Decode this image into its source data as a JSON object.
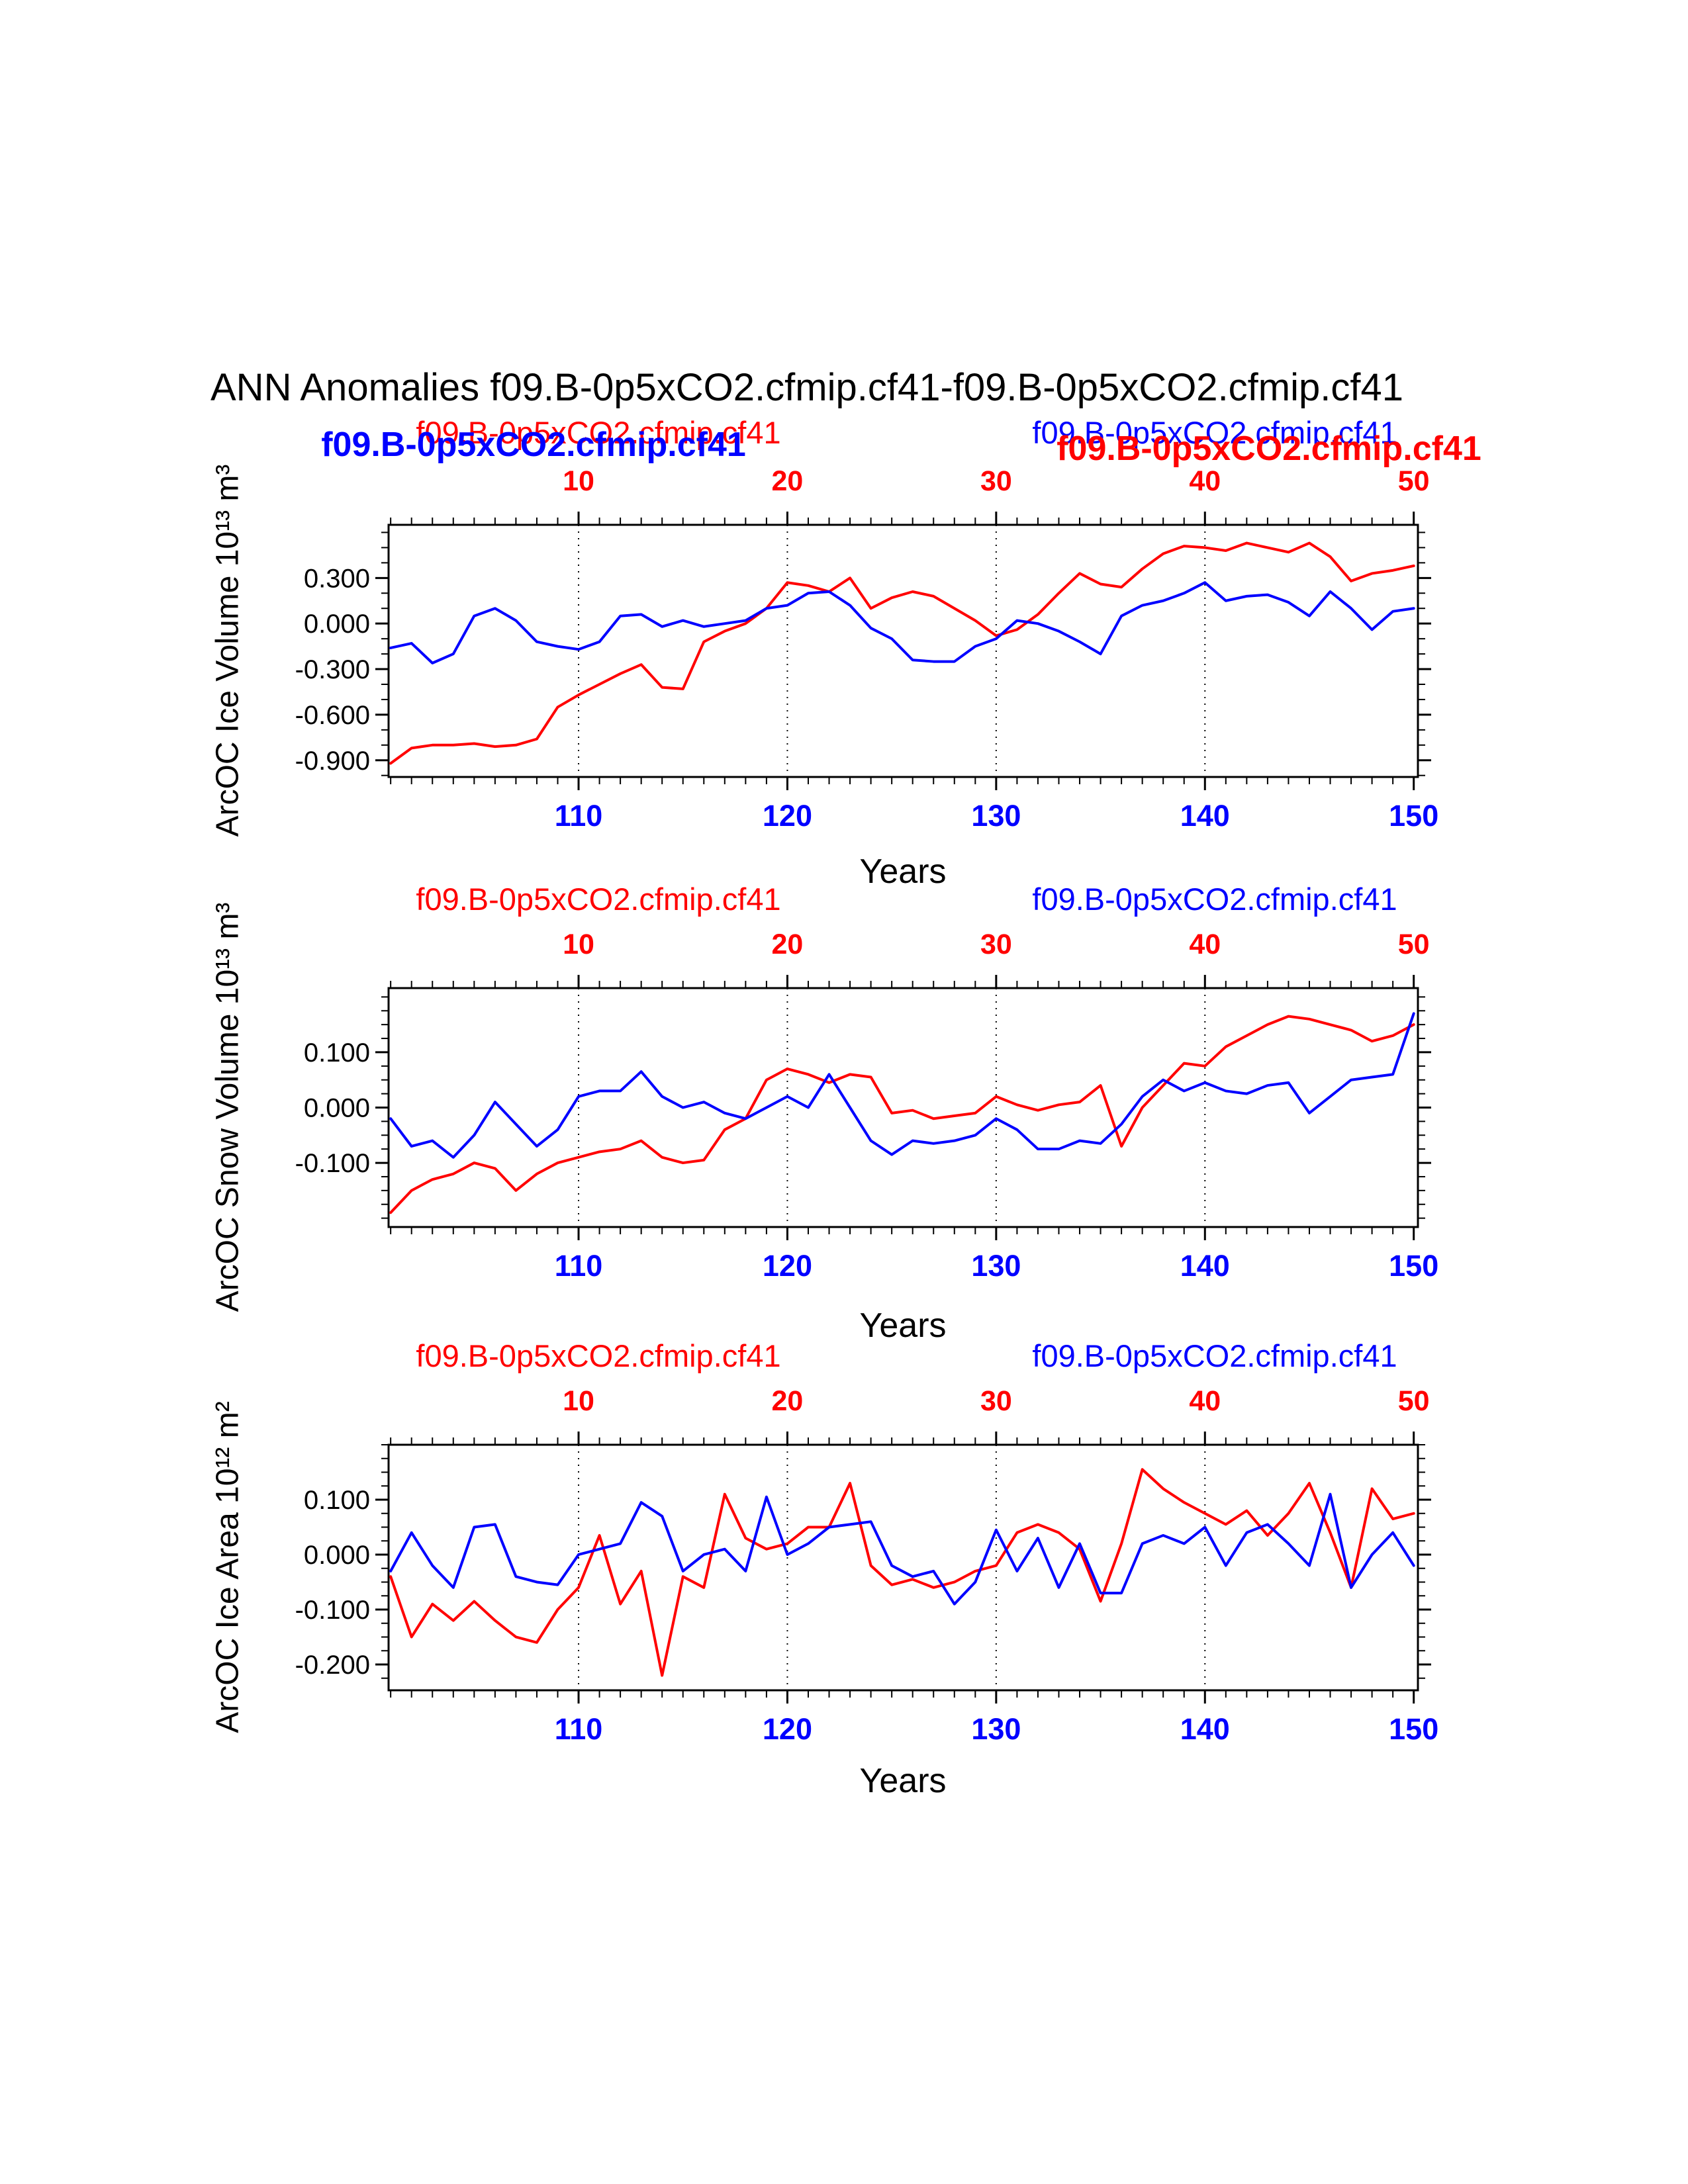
{
  "title": "ANN Anomalies f09.B-0p5xCO2.cfmip.cf41-f09.B-0p5xCO2.cfmip.cf41",
  "colors": {
    "red": "#ff0000",
    "blue": "#0000ff",
    "black": "#000000"
  },
  "legend": {
    "bold_left_label": "f09.B-0p5xCO2.cfmip.cf41",
    "bold_right_label": "f09.B-0p5xCO2.cfmip.cf41"
  },
  "chart_data": [
    {
      "type": "line",
      "legend_red": "f09.B-0p5xCO2.cfmip.cf41",
      "legend_blue": "f09.B-0p5xCO2.cfmip.cf41",
      "ylabel": "ArcOC Ice Volume 10¹³ m³",
      "xlabel": "Years",
      "x_start": 101,
      "x_end": 150,
      "xlim": [
        100.9,
        150.2
      ],
      "ylim": [
        -1.01,
        0.65
      ],
      "yticks": [
        0.3,
        0.0,
        -0.3,
        -0.6,
        -0.9
      ],
      "ytick_labels": [
        "0.300",
        "0.000",
        "-0.300",
        "-0.600",
        "-0.900"
      ],
      "yminor_step": 0.1,
      "xticks": [
        110,
        120,
        130,
        140,
        150
      ],
      "xtick_labels_bottom": [
        "110",
        "120",
        "130",
        "140",
        "150"
      ],
      "xtick_labels_top": [
        "10",
        "20",
        "30",
        "40",
        "50"
      ],
      "grid_x": [
        110,
        120,
        130,
        140
      ],
      "grid": true,
      "legend_position": "top",
      "series": [
        {
          "name": "f09.B-0p5xCO2.cfmip.cf41",
          "color": "red",
          "values": [
            -0.92,
            -0.82,
            -0.8,
            -0.8,
            -0.79,
            -0.81,
            -0.8,
            -0.76,
            -0.55,
            -0.47,
            -0.4,
            -0.33,
            -0.27,
            -0.42,
            -0.43,
            -0.12,
            -0.05,
            0.0,
            0.1,
            0.27,
            0.25,
            0.21,
            0.3,
            0.1,
            0.17,
            0.21,
            0.18,
            0.1,
            0.02,
            -0.08,
            -0.04,
            0.06,
            0.2,
            0.33,
            0.26,
            0.24,
            0.36,
            0.46,
            0.51,
            0.5,
            0.48,
            0.53,
            0.5,
            0.47,
            0.53,
            0.44,
            0.28,
            0.33,
            0.35,
            0.38
          ]
        },
        {
          "name": "f09.B-0p5xCO2.cfmip.cf41",
          "color": "blue",
          "values": [
            -0.16,
            -0.13,
            -0.26,
            -0.2,
            0.05,
            0.1,
            0.02,
            -0.12,
            -0.15,
            -0.17,
            -0.12,
            0.05,
            0.06,
            -0.02,
            0.02,
            -0.02,
            0.0,
            0.02,
            0.1,
            0.12,
            0.2,
            0.21,
            0.12,
            -0.03,
            -0.1,
            -0.24,
            -0.25,
            -0.25,
            -0.15,
            -0.1,
            0.02,
            0.0,
            -0.05,
            -0.12,
            -0.2,
            0.05,
            0.12,
            0.15,
            0.2,
            0.27,
            0.15,
            0.18,
            0.19,
            0.14,
            0.05,
            0.21,
            0.1,
            -0.04,
            0.08,
            0.1
          ]
        }
      ]
    },
    {
      "type": "line",
      "legend_red": "f09.B-0p5xCO2.cfmip.cf41",
      "legend_blue": "f09.B-0p5xCO2.cfmip.cf41",
      "ylabel": "ArcOC Snow Volume 10¹³ m³",
      "xlabel": "Years",
      "x_start": 101,
      "x_end": 150,
      "xlim": [
        100.9,
        150.2
      ],
      "ylim": [
        -0.216,
        0.216
      ],
      "yticks": [
        0.1,
        0.0,
        -0.1
      ],
      "ytick_labels": [
        "0.100",
        "0.000",
        "-0.100"
      ],
      "yminor_step": 0.025,
      "xticks": [
        110,
        120,
        130,
        140,
        150
      ],
      "xtick_labels_bottom": [
        "110",
        "120",
        "130",
        "140",
        "150"
      ],
      "xtick_labels_top": [
        "10",
        "20",
        "30",
        "40",
        "50"
      ],
      "grid_x": [
        110,
        120,
        130,
        140
      ],
      "grid": true,
      "legend_position": "top",
      "series": [
        {
          "name": "f09.B-0p5xCO2.cfmip.cf41",
          "color": "red",
          "values": [
            -0.19,
            -0.15,
            -0.13,
            -0.12,
            -0.1,
            -0.11,
            -0.15,
            -0.12,
            -0.1,
            -0.09,
            -0.08,
            -0.075,
            -0.06,
            -0.09,
            -0.1,
            -0.095,
            -0.04,
            -0.02,
            0.05,
            0.07,
            0.06,
            0.045,
            0.06,
            0.055,
            -0.01,
            -0.005,
            -0.02,
            -0.015,
            -0.01,
            0.02,
            0.005,
            -0.005,
            0.005,
            0.01,
            0.04,
            -0.07,
            0.0,
            0.04,
            0.08,
            0.075,
            0.11,
            0.13,
            0.15,
            0.165,
            0.16,
            0.15,
            0.14,
            0.12,
            0.13,
            0.15
          ]
        },
        {
          "name": "f09.B-0p5xCO2.cfmip.cf41",
          "color": "blue",
          "values": [
            -0.02,
            -0.07,
            -0.06,
            -0.09,
            -0.05,
            0.01,
            -0.03,
            -0.07,
            -0.04,
            0.02,
            0.03,
            0.03,
            0.065,
            0.02,
            0.0,
            0.01,
            -0.01,
            -0.02,
            0.0,
            0.02,
            0.0,
            0.06,
            0.0,
            -0.06,
            -0.085,
            -0.06,
            -0.065,
            -0.06,
            -0.05,
            -0.02,
            -0.04,
            -0.075,
            -0.075,
            -0.06,
            -0.065,
            -0.03,
            0.02,
            0.05,
            0.03,
            0.045,
            0.03,
            0.025,
            0.04,
            0.045,
            -0.01,
            0.02,
            0.05,
            0.055,
            0.06,
            0.17
          ]
        }
      ]
    },
    {
      "type": "line",
      "legend_red": "f09.B-0p5xCO2.cfmip.cf41",
      "legend_blue": "f09.B-0p5xCO2.cfmip.cf41",
      "ylabel": "ArcOC Ice Area 10¹² m²",
      "xlabel": "Years",
      "x_start": 101,
      "x_end": 150,
      "xlim": [
        100.9,
        150.2
      ],
      "ylim": [
        -0.247,
        0.2
      ],
      "yticks": [
        0.1,
        0.0,
        -0.1,
        -0.2
      ],
      "ytick_labels": [
        "0.100",
        "0.000",
        "-0.100",
        "-0.200"
      ],
      "yminor_step": 0.025,
      "xticks": [
        110,
        120,
        130,
        140,
        150
      ],
      "xtick_labels_bottom": [
        "110",
        "120",
        "130",
        "140",
        "150"
      ],
      "xtick_labels_top": [
        "10",
        "20",
        "30",
        "40",
        "50"
      ],
      "grid_x": [
        110,
        120,
        130,
        140
      ],
      "grid": true,
      "legend_position": "top",
      "series": [
        {
          "name": "f09.B-0p5xCO2.cfmip.cf41",
          "color": "red",
          "values": [
            -0.04,
            -0.15,
            -0.09,
            -0.12,
            -0.085,
            -0.12,
            -0.15,
            -0.16,
            -0.1,
            -0.06,
            0.035,
            -0.09,
            -0.03,
            -0.22,
            -0.04,
            -0.06,
            0.11,
            0.03,
            0.01,
            0.02,
            0.05,
            0.05,
            0.13,
            -0.02,
            -0.055,
            -0.045,
            -0.06,
            -0.05,
            -0.03,
            -0.02,
            0.04,
            0.055,
            0.04,
            0.01,
            -0.085,
            0.02,
            0.155,
            0.12,
            0.095,
            0.075,
            0.055,
            0.08,
            0.035,
            0.075,
            0.13,
            0.04,
            -0.06,
            0.12,
            0.065,
            0.075
          ]
        },
        {
          "name": "f09.B-0p5xCO2.cfmip.cf41",
          "color": "blue",
          "values": [
            -0.03,
            0.04,
            -0.02,
            -0.06,
            0.05,
            0.055,
            -0.04,
            -0.05,
            -0.055,
            0.0,
            0.01,
            0.02,
            0.095,
            0.07,
            -0.03,
            0.0,
            0.01,
            -0.03,
            0.105,
            0.0,
            0.02,
            0.05,
            0.055,
            0.06,
            -0.02,
            -0.04,
            -0.03,
            -0.09,
            -0.05,
            0.045,
            -0.03,
            0.03,
            -0.06,
            0.02,
            -0.07,
            -0.07,
            0.02,
            0.035,
            0.02,
            0.05,
            -0.02,
            0.04,
            0.055,
            0.02,
            -0.02,
            0.11,
            -0.06,
            0.0,
            0.04,
            -0.02
          ]
        }
      ]
    }
  ]
}
